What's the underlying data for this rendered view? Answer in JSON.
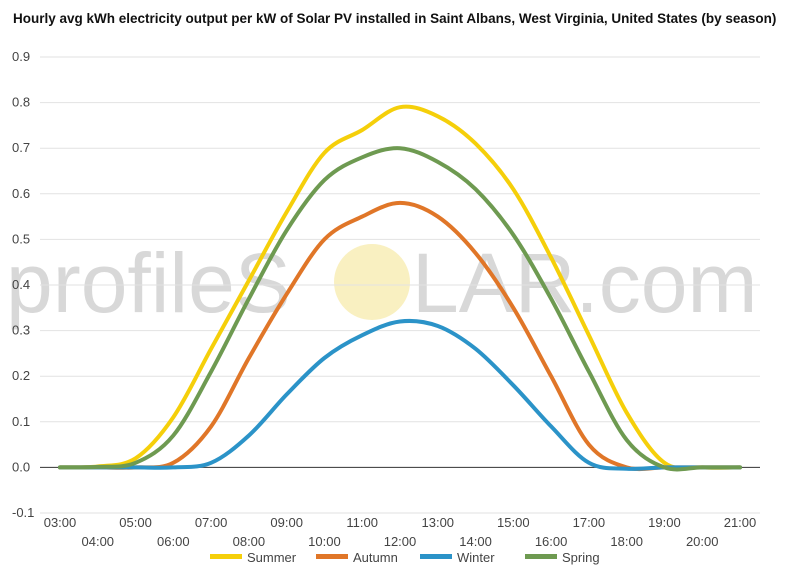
{
  "chart_data": {
    "type": "line",
    "title": "Hourly avg kWh electricity output per kW of Solar PV installed in Saint Albans, West Virginia, United States (by season)",
    "xlabel": "",
    "ylabel": "",
    "ylim": [
      -0.1,
      0.9
    ],
    "yticks": [
      "-0.1",
      "0.0",
      "0.1",
      "0.2",
      "0.3",
      "0.4",
      "0.5",
      "0.6",
      "0.7",
      "0.8",
      "0.9"
    ],
    "x": [
      "03:00",
      "04:00",
      "05:00",
      "06:00",
      "07:00",
      "08:00",
      "09:00",
      "10:00",
      "11:00",
      "12:00",
      "13:00",
      "14:00",
      "15:00",
      "16:00",
      "17:00",
      "18:00",
      "19:00",
      "20:00",
      "21:00"
    ],
    "grid": true,
    "legend_position": "bottom",
    "series": [
      {
        "name": "Summer",
        "color": "#f5cf0a",
        "values": [
          0.0,
          0.002,
          0.02,
          0.11,
          0.26,
          0.41,
          0.56,
          0.69,
          0.74,
          0.79,
          0.77,
          0.71,
          0.61,
          0.46,
          0.29,
          0.12,
          0.01,
          0.0,
          0.0
        ]
      },
      {
        "name": "Autumn",
        "color": "#e07628",
        "values": [
          0.0,
          0.0,
          0.0,
          0.01,
          0.09,
          0.24,
          0.38,
          0.5,
          0.55,
          0.58,
          0.55,
          0.47,
          0.35,
          0.2,
          0.05,
          0.0,
          0.0,
          0.0,
          0.0
        ]
      },
      {
        "name": "Winter",
        "color": "#2b93c8",
        "values": [
          0.0,
          0.0,
          0.0,
          0.0,
          0.01,
          0.07,
          0.16,
          0.24,
          0.29,
          0.32,
          0.31,
          0.26,
          0.18,
          0.09,
          0.01,
          -0.003,
          0.0,
          0.0,
          0.0
        ]
      },
      {
        "name": "Spring",
        "color": "#6e9a51",
        "values": [
          0.0,
          0.001,
          0.01,
          0.07,
          0.21,
          0.37,
          0.52,
          0.63,
          0.68,
          0.7,
          0.67,
          0.61,
          0.51,
          0.37,
          0.21,
          0.06,
          0.0,
          0.0,
          0.0
        ]
      }
    ]
  },
  "watermark": {
    "text_left": "profileS",
    "text_right": "LAR.com"
  }
}
